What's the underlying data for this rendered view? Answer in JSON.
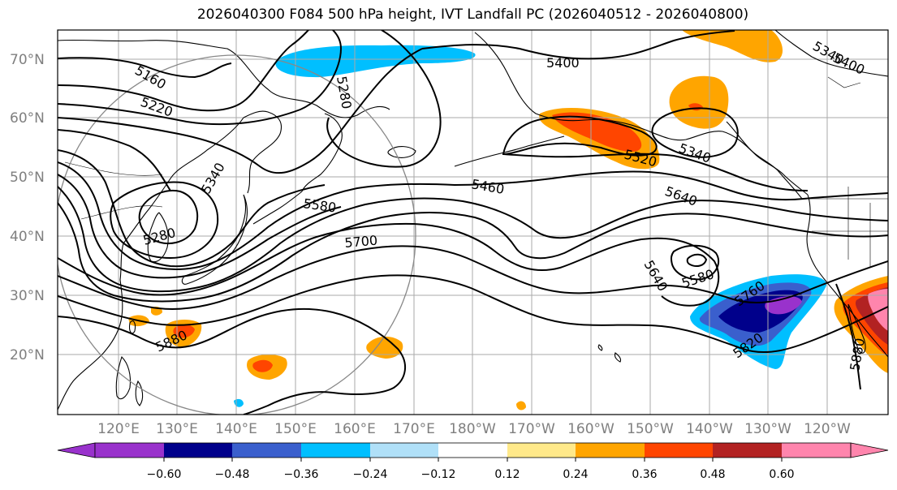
{
  "title": "2026040300 F084 500 hPa height, IVT Landfall PC (2026040512 - 2026040800)",
  "lat_labels": [
    "70°N",
    "60°N",
    "50°N",
    "40°N",
    "30°N",
    "20°N"
  ],
  "lon_labels": [
    "120°E",
    "130°E",
    "140°E",
    "150°E",
    "160°E",
    "170°E",
    "180°W",
    "170°W",
    "160°W",
    "150°W",
    "140°W",
    "130°W",
    "120°W"
  ],
  "colorbar": {
    "ticks": [
      "−0.60",
      "−0.48",
      "−0.36",
      "−0.24",
      "−0.12",
      "0.12",
      "0.24",
      "0.36",
      "0.48",
      "0.60"
    ],
    "colors": [
      "#9932cc",
      "#00008b",
      "#3a5fcd",
      "#00bfff",
      "#b0e0f8",
      "#ffffff",
      "#ffe98a",
      "#ffa500",
      "#ff4500",
      "#b22222",
      "#ff85ad"
    ]
  },
  "contour_labels": [
    "5160",
    "5220",
    "5280",
    "5400",
    "5340",
    "5280",
    "5340",
    "5580",
    "5460",
    "5520",
    "5340",
    "5640",
    "5700",
    "5640",
    "5580",
    "5760",
    "5820",
    "5880",
    "5880",
    "5340",
    "5400"
  ]
}
